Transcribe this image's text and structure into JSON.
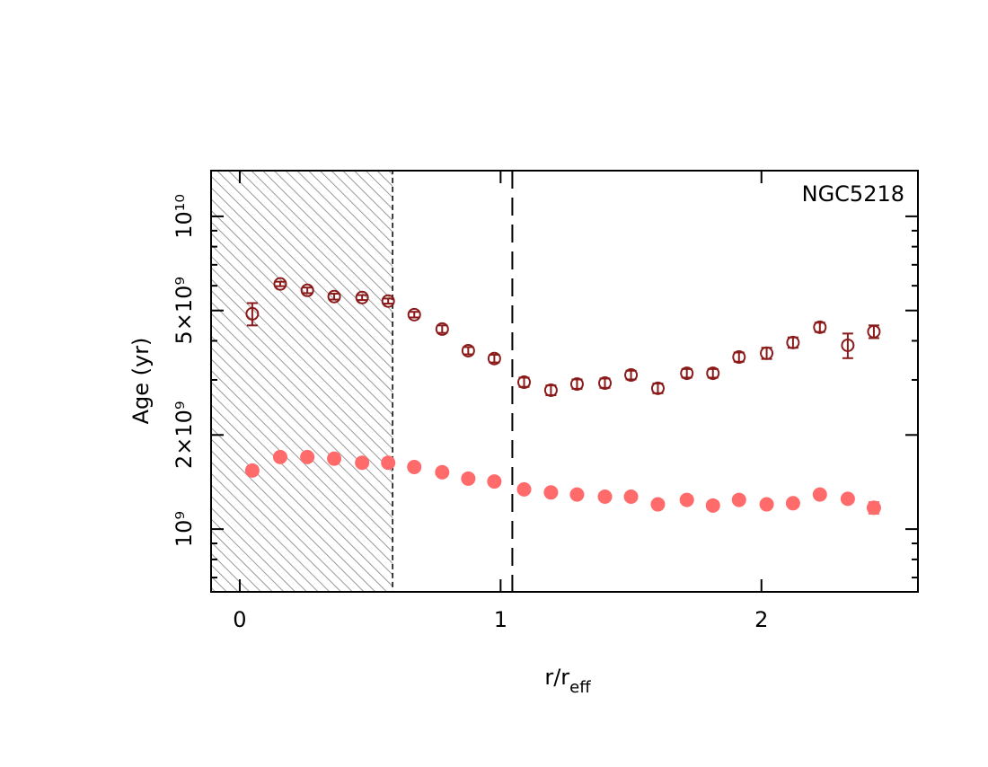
{
  "chart_data": {
    "type": "scatter",
    "annotation": "NGC5218",
    "xlabel": {
      "main": "r/r",
      "sub": "eff"
    },
    "ylabel": "Age (yr)",
    "xlim": [
      -0.11,
      2.6
    ],
    "xticks": [
      0,
      1,
      2
    ],
    "ylim": [
      630000000,
      14000000000
    ],
    "log_y": true,
    "yticks": [
      {
        "value": 1000000000,
        "label": "10⁹"
      },
      {
        "value": 2000000000,
        "label": "2×10⁹"
      },
      {
        "value": 5000000000,
        "label": "5×10⁹"
      },
      {
        "value": 10000000000,
        "label": "10¹⁰"
      }
    ],
    "yminor": [
      700000000,
      800000000,
      900000000,
      3000000000,
      4000000000,
      6000000000,
      7000000000,
      8000000000,
      9000000000
    ],
    "shade_x": 0.586,
    "vline_x": 1.045,
    "x": [
      0.048,
      0.155,
      0.259,
      0.362,
      0.469,
      0.569,
      0.669,
      0.776,
      0.876,
      0.976,
      1.09,
      1.193,
      1.293,
      1.4,
      1.5,
      1.603,
      1.714,
      1.814,
      1.914,
      2.02,
      2.121,
      2.224,
      2.331,
      2.431
    ],
    "series": [
      {
        "marker": "open",
        "color": "#8b1a1a",
        "values": [
          4880000000,
          6080000000,
          5800000000,
          5540000000,
          5500000000,
          5360000000,
          4850000000,
          4360000000,
          3720000000,
          3510000000,
          2950000000,
          2780000000,
          2910000000,
          2930000000,
          3110000000,
          2820000000,
          3150000000,
          3150000000,
          3550000000,
          3650000000,
          3950000000,
          4420000000,
          3870000000,
          4280000000
        ],
        "errors": [
          400000000,
          100000000,
          120000000,
          120000000,
          100000000,
          100000000,
          100000000,
          120000000,
          100000000,
          100000000,
          100000000,
          100000000,
          100000000,
          100000000,
          100000000,
          100000000,
          100000000,
          100000000,
          120000000,
          150000000,
          150000000,
          150000000,
          350000000,
          200000000
        ]
      },
      {
        "marker": "filled",
        "color": "#ff6b6b",
        "values": [
          1540000000,
          1700000000,
          1700000000,
          1680000000,
          1630000000,
          1630000000,
          1580000000,
          1520000000,
          1450000000,
          1420000000,
          1340000000,
          1310000000,
          1290000000,
          1270000000,
          1270000000,
          1200000000,
          1240000000,
          1190000000,
          1240000000,
          1200000000,
          1210000000,
          1290000000,
          1250000000,
          1170000000
        ],
        "errors": [
          20000000,
          20000000,
          20000000,
          20000000,
          20000000,
          20000000,
          20000000,
          20000000,
          20000000,
          20000000,
          20000000,
          20000000,
          20000000,
          20000000,
          20000000,
          20000000,
          20000000,
          20000000,
          20000000,
          20000000,
          20000000,
          30000000,
          30000000,
          50000000
        ]
      }
    ]
  }
}
